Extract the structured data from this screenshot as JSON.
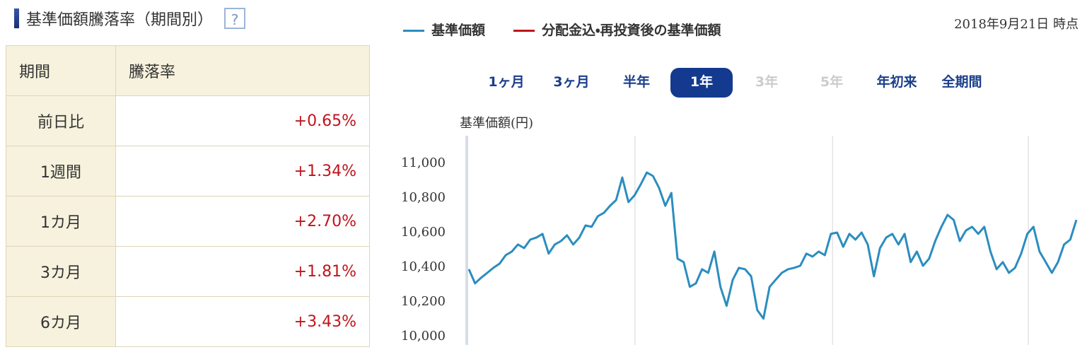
{
  "header": {
    "title": "基準価額騰落率（期間別）",
    "help": "?"
  },
  "table": {
    "columns": [
      "期間",
      "騰落率"
    ],
    "rows": [
      [
        "前日比",
        "+0.65%"
      ],
      [
        "1週間",
        "+1.34%"
      ],
      [
        "1カ月",
        "+2.70%"
      ],
      [
        "3カ月",
        "+1.81%"
      ],
      [
        "6カ月",
        "+3.43%"
      ]
    ]
  },
  "legend": [
    {
      "name": "基準価額",
      "color": "#2b8dbf"
    },
    {
      "name": "分配金込・再投資後の基準価額",
      "color": "#c0141c"
    }
  ],
  "timestamp": "2018年9月21日 時点",
  "tabs": [
    {
      "label": "1ヶ月",
      "state": "enabled"
    },
    {
      "label": "3ヶ月",
      "state": "enabled"
    },
    {
      "label": "半年",
      "state": "enabled"
    },
    {
      "label": "1年",
      "state": "active"
    },
    {
      "label": "3年",
      "state": "disabled"
    },
    {
      "label": "5年",
      "state": "disabled"
    },
    {
      "label": "年初来",
      "state": "enabled"
    },
    {
      "label": "全期間",
      "state": "enabled"
    }
  ],
  "chart": {
    "type": "line",
    "ylabel": "基準価額(円)",
    "ylim": [
      9950,
      11160
    ],
    "yticks": [
      {
        "value": 10000,
        "label": "10,000"
      },
      {
        "value": 10200,
        "label": "10,200"
      },
      {
        "value": 10400,
        "label": "10,400"
      },
      {
        "value": 10600,
        "label": "10,600"
      },
      {
        "value": 10800,
        "label": "10,800"
      },
      {
        "value": 11000,
        "label": "11,000"
      }
    ],
    "series": [
      {
        "name": "基準価額",
        "color": "#2b8dbf",
        "values": [
          10388,
          10306,
          10339,
          10367,
          10396,
          10420,
          10469,
          10490,
          10531,
          10510,
          10559,
          10571,
          10592,
          10478,
          10531,
          10551,
          10584,
          10531,
          10571,
          10641,
          10633,
          10694,
          10714,
          10755,
          10788,
          10918,
          10776,
          10816,
          10878,
          10947,
          10927,
          10857,
          10755,
          10829,
          10449,
          10429,
          10286,
          10306,
          10388,
          10367,
          10490,
          10286,
          10176,
          10327,
          10396,
          10388,
          10347,
          10151,
          10102,
          10286,
          10327,
          10367,
          10388,
          10396,
          10408,
          10478,
          10461,
          10490,
          10469,
          10592,
          10600,
          10518,
          10592,
          10559,
          10600,
          10531,
          10347,
          10510,
          10571,
          10592,
          10531,
          10592,
          10429,
          10490,
          10408,
          10449,
          10551,
          10633,
          10702,
          10673,
          10551,
          10612,
          10633,
          10592,
          10633,
          10490,
          10388,
          10429,
          10367,
          10396,
          10478,
          10592,
          10633,
          10490,
          10429,
          10367,
          10429,
          10531,
          10559,
          10673
        ]
      }
    ]
  }
}
